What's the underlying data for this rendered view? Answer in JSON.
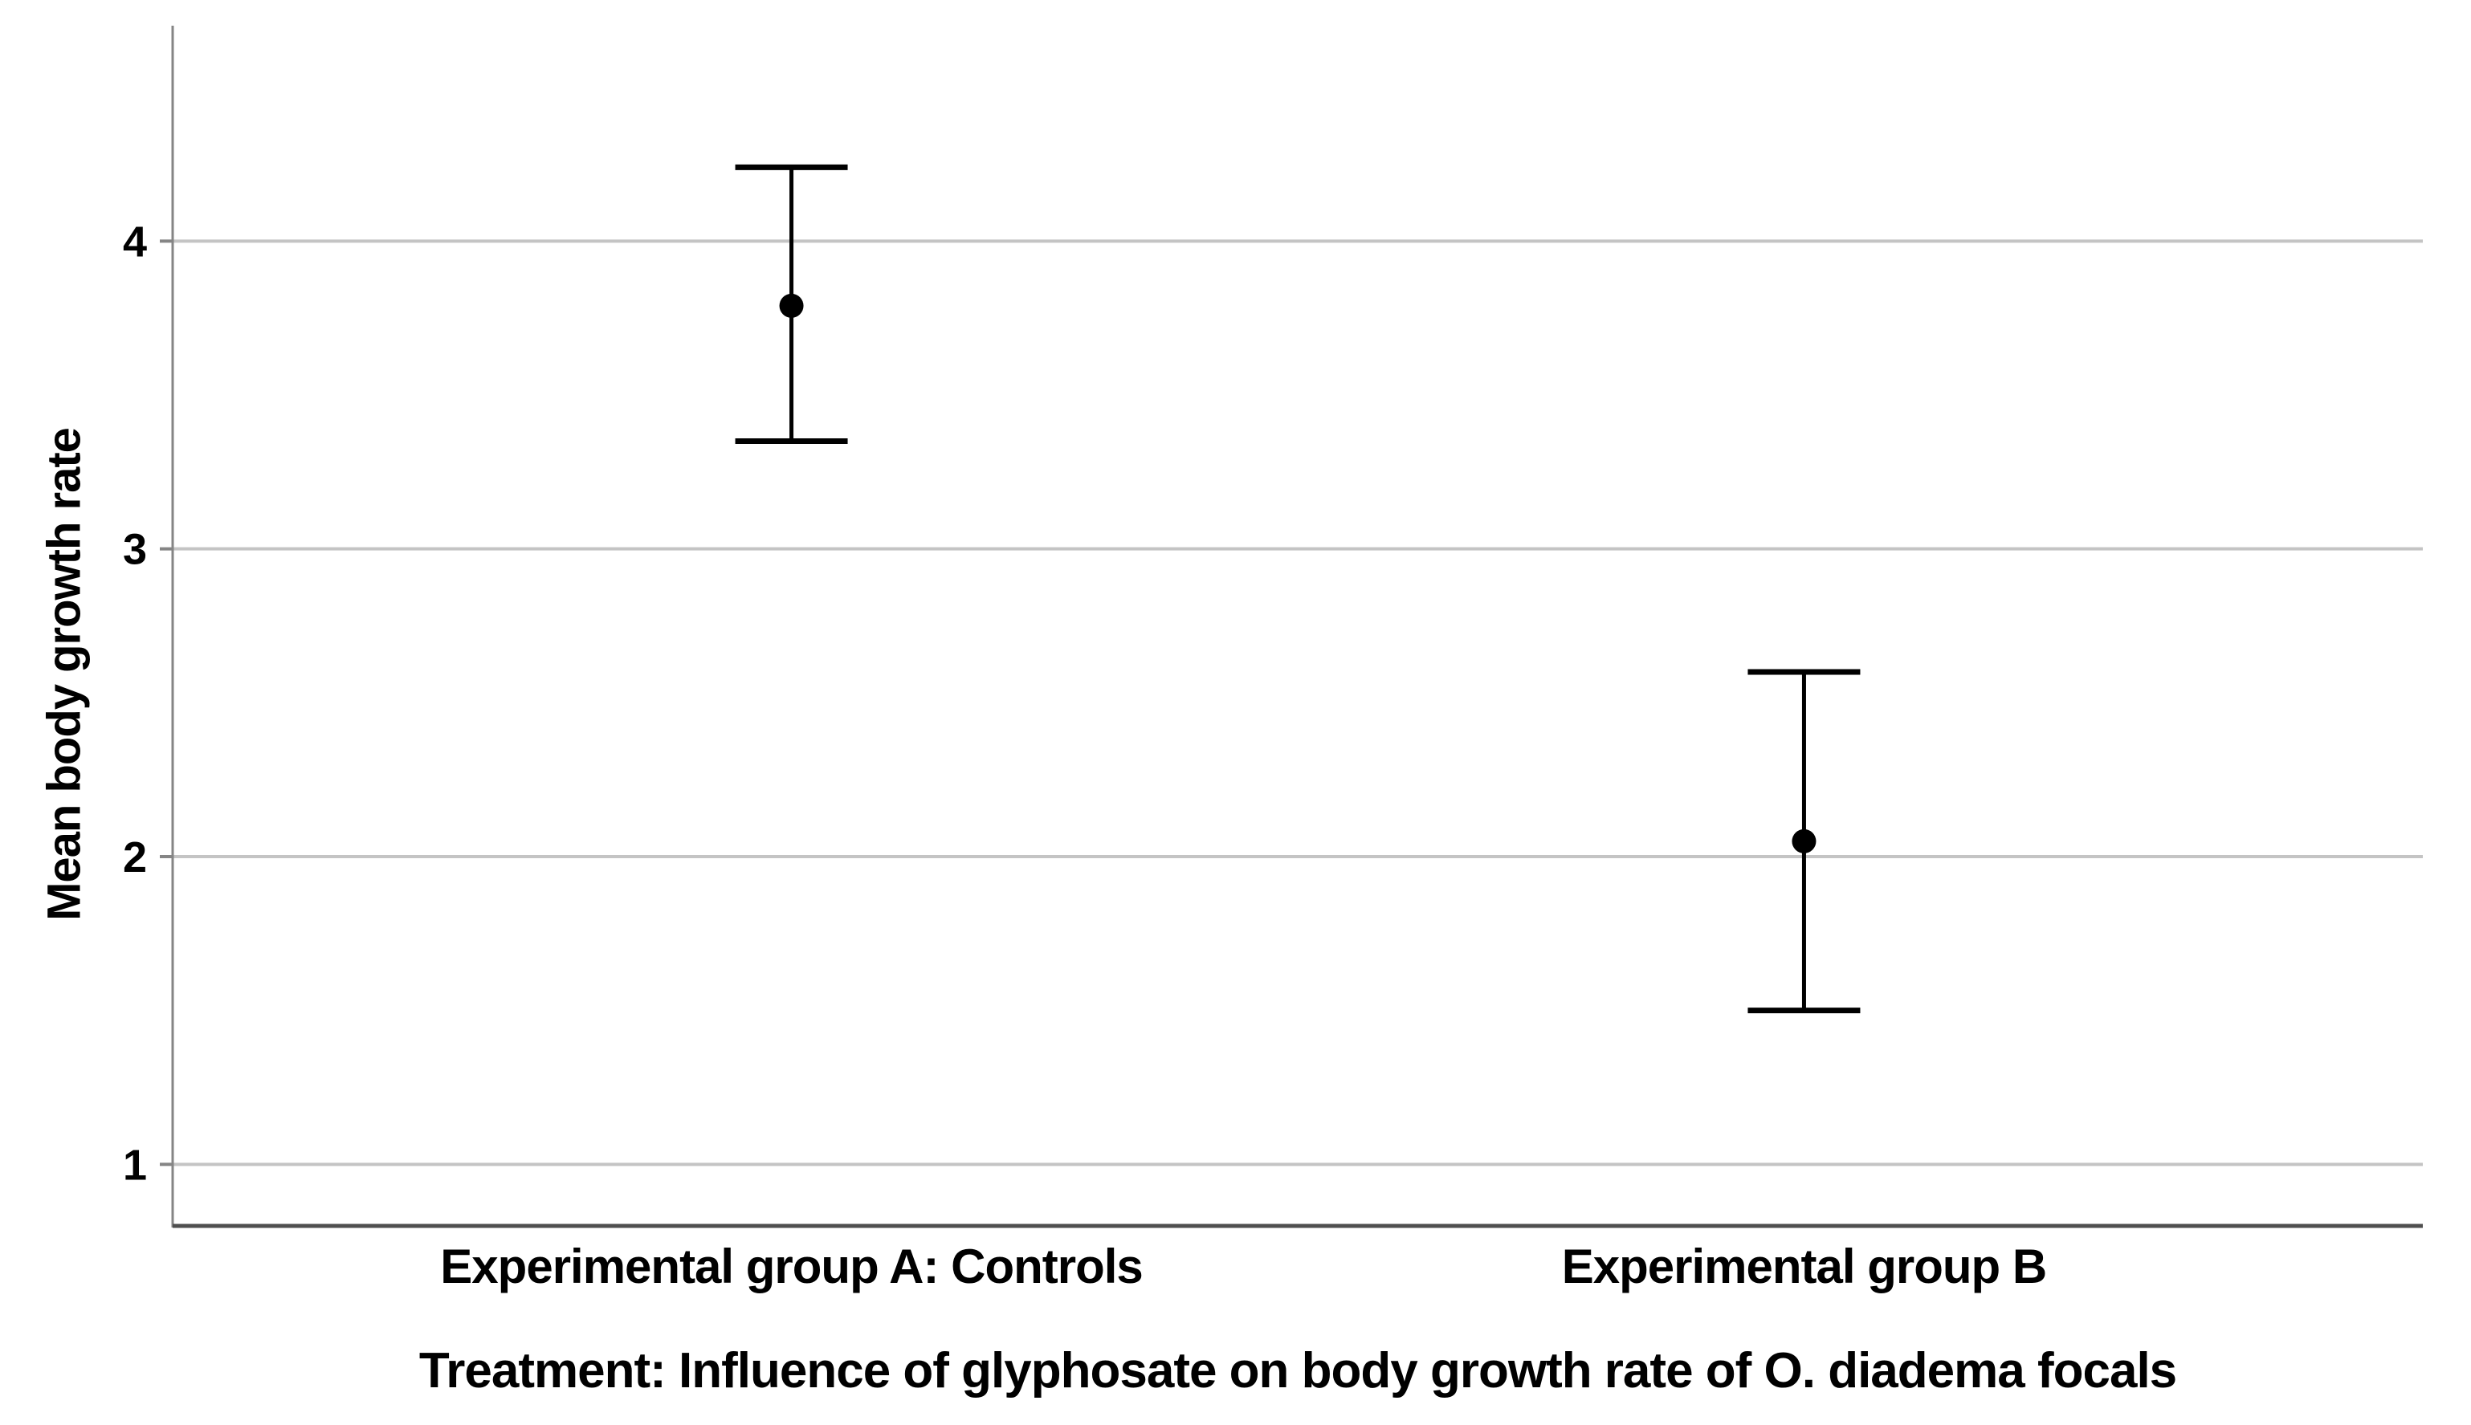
{
  "chart_data": {
    "type": "scatter",
    "subtype": "errorbar-means-plot",
    "categories": [
      "Experimental group A: Controls",
      "Experimental group B"
    ],
    "series": [
      {
        "name": "Mean body growth rate",
        "means": [
          3.79,
          2.05
        ],
        "ci_lower": [
          3.35,
          1.5
        ],
        "ci_upper": [
          4.24,
          2.6
        ]
      }
    ],
    "title": "",
    "xlabel": "Treatment: Influence of glyphosate on body growth rate of O. diadema focals",
    "ylabel": "Mean body growth rate",
    "yticks": [
      1,
      2,
      3,
      4
    ],
    "ylim": [
      0.8,
      4.7
    ],
    "grid": "horizontal",
    "legend": "none",
    "marker": "filled-circle",
    "colors": {
      "marker": "#000000",
      "errorbar": "#000000",
      "gridline": "#c4c4c4",
      "y_axis": "#858585",
      "x_axis": "#4f4f4f",
      "text": "#000000",
      "background": "#ffffff"
    }
  }
}
